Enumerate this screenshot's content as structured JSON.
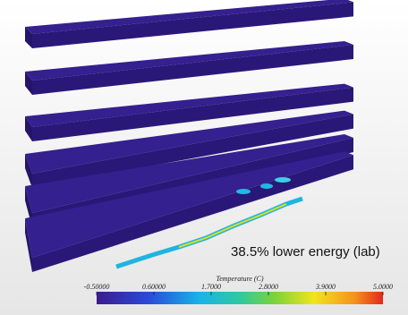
{
  "annotation": "38.5% lower energy (lab)",
  "colorbar": {
    "title": "Temperature (C)",
    "range": [
      -0.5,
      5
    ],
    "ticks": [
      {
        "value": -0.5,
        "label": "-0.50000"
      },
      {
        "value": 0.6,
        "label": "0.60000"
      },
      {
        "value": 1.7,
        "label": "1.7000"
      },
      {
        "value": 2.8,
        "label": "2.8000"
      },
      {
        "value": 3.9,
        "label": "3.9000"
      },
      {
        "value": 5,
        "label": "5.0000"
      }
    ]
  }
}
